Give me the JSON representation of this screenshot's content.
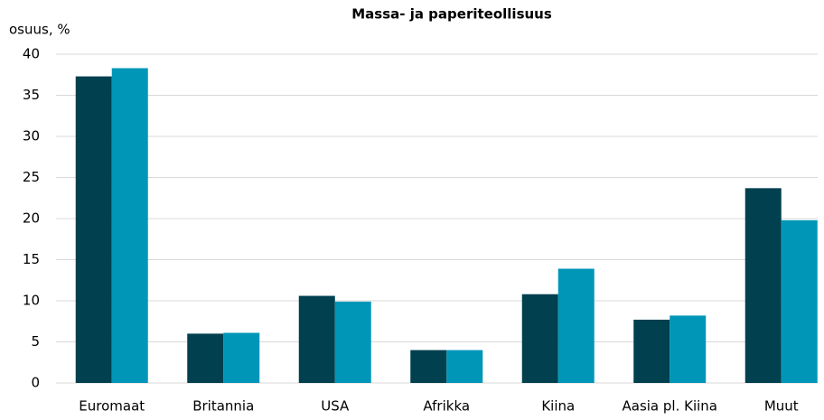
{
  "chart_data": {
    "type": "bar",
    "title": "Massa- ja paperiteollisuus",
    "y_label": "osuus, %",
    "categories": [
      "Euromaat",
      "Britannia",
      "USA",
      "Afrikka",
      "Kiina",
      "Aasia pl. Kiina",
      "Muut"
    ],
    "series": [
      {
        "color": "#00404f",
        "values": [
          37.3,
          6.0,
          10.6,
          4.0,
          10.8,
          7.7,
          23.7
        ]
      },
      {
        "color": "#0096b8",
        "values": [
          38.3,
          6.1,
          9.9,
          4.0,
          13.9,
          8.2,
          19.8
        ]
      }
    ],
    "ylim": [
      0,
      40
    ],
    "yticks": [
      0,
      5,
      10,
      15,
      20,
      25,
      30,
      35,
      40
    ],
    "grid": true
  }
}
